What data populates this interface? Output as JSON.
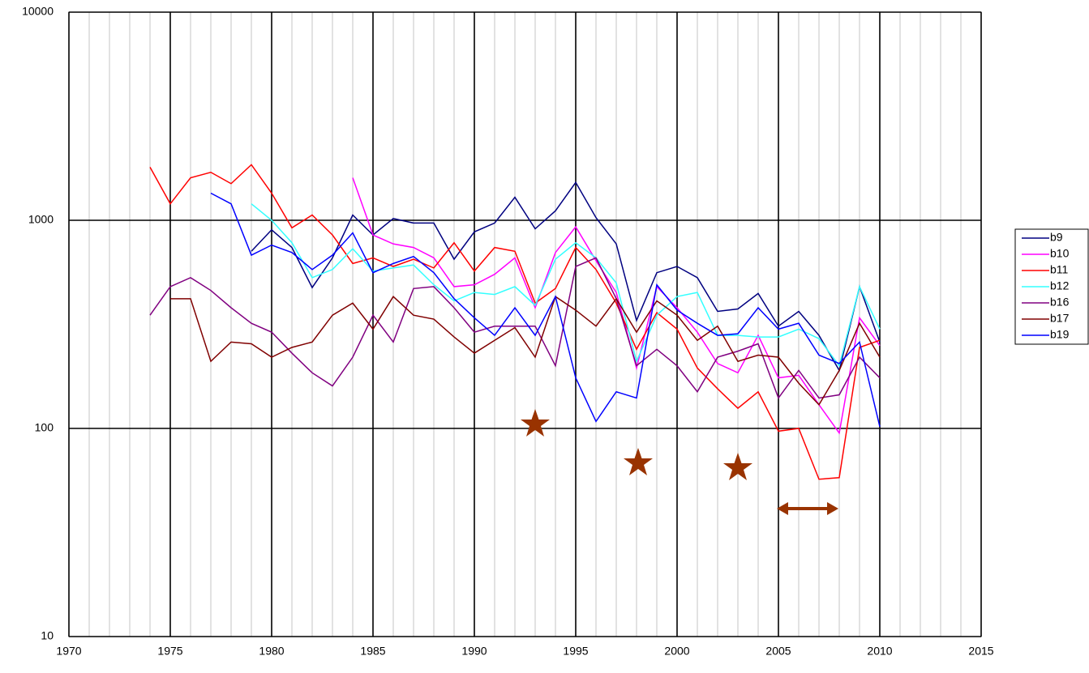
{
  "chart_data": {
    "type": "line",
    "x": [
      1974,
      1975,
      1976,
      1977,
      1978,
      1979,
      1980,
      1981,
      1982,
      1983,
      1984,
      1985,
      1986,
      1987,
      1988,
      1989,
      1990,
      1991,
      1992,
      1993,
      1994,
      1995,
      1996,
      1997,
      1998,
      1999,
      2000,
      2001,
      2002,
      2003,
      2004,
      2005,
      2006,
      2007,
      2008,
      2009,
      2010
    ],
    "series": [
      {
        "name": "b9",
        "color": "#000080",
        "values": [
          null,
          null,
          null,
          null,
          null,
          710,
          900,
          740,
          475,
          660,
          1060,
          850,
          1020,
          970,
          970,
          650,
          880,
          970,
          1290,
          910,
          1110,
          1520,
          1030,
          770,
          330,
          560,
          600,
          530,
          365,
          375,
          445,
          310,
          365,
          280,
          190,
          480,
          260
        ]
      },
      {
        "name": "b10",
        "color": "#ff00ff",
        "values": [
          null,
          null,
          null,
          null,
          null,
          null,
          null,
          null,
          null,
          null,
          1600,
          850,
          770,
          740,
          660,
          480,
          490,
          550,
          660,
          380,
          700,
          930,
          640,
          450,
          195,
          480,
          380,
          290,
          205,
          185,
          280,
          175,
          180,
          130,
          95,
          340,
          250
        ]
      },
      {
        "name": "b11",
        "color": "#ff0000",
        "values": [
          1800,
          1200,
          1600,
          1700,
          1500,
          1850,
          1350,
          920,
          1060,
          850,
          620,
          660,
          600,
          650,
          590,
          780,
          570,
          740,
          710,
          400,
          470,
          740,
          580,
          400,
          240,
          360,
          300,
          195,
          155,
          125,
          150,
          97,
          100,
          57,
          58,
          245,
          265
        ]
      },
      {
        "name": "b12",
        "color": "#33ffff",
        "values": [
          null,
          null,
          null,
          null,
          null,
          1200,
          1000,
          780,
          530,
          580,
          730,
          570,
          590,
          610,
          490,
          410,
          450,
          440,
          480,
          390,
          650,
          780,
          660,
          500,
          210,
          350,
          430,
          450,
          280,
          280,
          275,
          275,
          300,
          270,
          200,
          480,
          300
        ]
      },
      {
        "name": "b16",
        "color": "#800080",
        "values": [
          350,
          480,
          530,
          460,
          380,
          320,
          290,
          230,
          185,
          160,
          220,
          350,
          260,
          470,
          480,
          380,
          290,
          310,
          310,
          310,
          200,
          600,
          660,
          420,
          200,
          240,
          200,
          150,
          220,
          235,
          255,
          140,
          190,
          140,
          145,
          220,
          175
        ]
      },
      {
        "name": "b17",
        "color": "#800000",
        "values": [
          null,
          420,
          420,
          210,
          260,
          255,
          220,
          245,
          260,
          350,
          400,
          300,
          430,
          350,
          335,
          275,
          230,
          265,
          305,
          220,
          430,
          370,
          310,
          420,
          290,
          410,
          350,
          265,
          310,
          210,
          225,
          220,
          165,
          130,
          190,
          320,
          220
        ]
      },
      {
        "name": "b19",
        "color": "#0000ff",
        "values": [
          null,
          null,
          null,
          1350,
          1200,
          680,
          760,
          700,
          580,
          680,
          870,
          560,
          620,
          670,
          560,
          420,
          340,
          280,
          380,
          280,
          430,
          175,
          108,
          150,
          140,
          490,
          370,
          320,
          280,
          285,
          380,
          300,
          320,
          225,
          205,
          260,
          102
        ]
      }
    ],
    "xlim": [
      1970,
      2015
    ],
    "xticks": [
      1970,
      1975,
      1980,
      1985,
      1990,
      1995,
      2000,
      2005,
      2010,
      2015
    ],
    "ylim": [
      10,
      10000
    ],
    "yticks": [
      10,
      100,
      1000,
      10000
    ],
    "ylog": true,
    "grid": true,
    "legend": "right"
  }
}
